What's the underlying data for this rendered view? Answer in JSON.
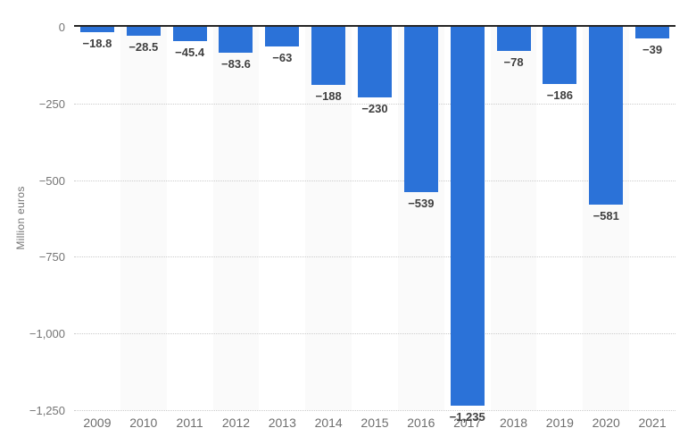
{
  "chart_data": {
    "type": "bar",
    "title": "",
    "ylabel": "Million euros",
    "xlabel": "",
    "categories": [
      "2009",
      "2010",
      "2011",
      "2012",
      "2013",
      "2014",
      "2015",
      "2016",
      "2017",
      "2018",
      "2019",
      "2020",
      "2021"
    ],
    "values": [
      -18.8,
      -28.5,
      -45.4,
      -83.6,
      -63,
      -188,
      -230,
      -539,
      -1235,
      -78,
      -186,
      -581,
      -39
    ],
    "value_labels": [
      "−18.8",
      "−28.5",
      "−45.4",
      "−83.6",
      "−63",
      "−188",
      "−230",
      "−539",
      "−1,235",
      "−78",
      "−186",
      "−581",
      "−39"
    ],
    "ylim": [
      -1250,
      0
    ],
    "yticks": [
      {
        "value": 0,
        "label": "0"
      },
      {
        "value": -250,
        "label": "−250"
      },
      {
        "value": -500,
        "label": "−500"
      },
      {
        "value": -750,
        "label": "−750"
      },
      {
        "value": -1000,
        "label": "−1,000"
      },
      {
        "value": -1250,
        "label": "−1,250"
      }
    ],
    "grid": "horizontal-dotted",
    "legend": "none",
    "colors": {
      "bar": "#2b72d8",
      "column_band": "#fafafa",
      "gridline": "#cccccc",
      "zero_axis": "#262626",
      "tick_text": "#757575",
      "x_tick_text": "#6e6e6e",
      "value_label_text": "#3f3f3f",
      "background": "#ffffff"
    }
  }
}
